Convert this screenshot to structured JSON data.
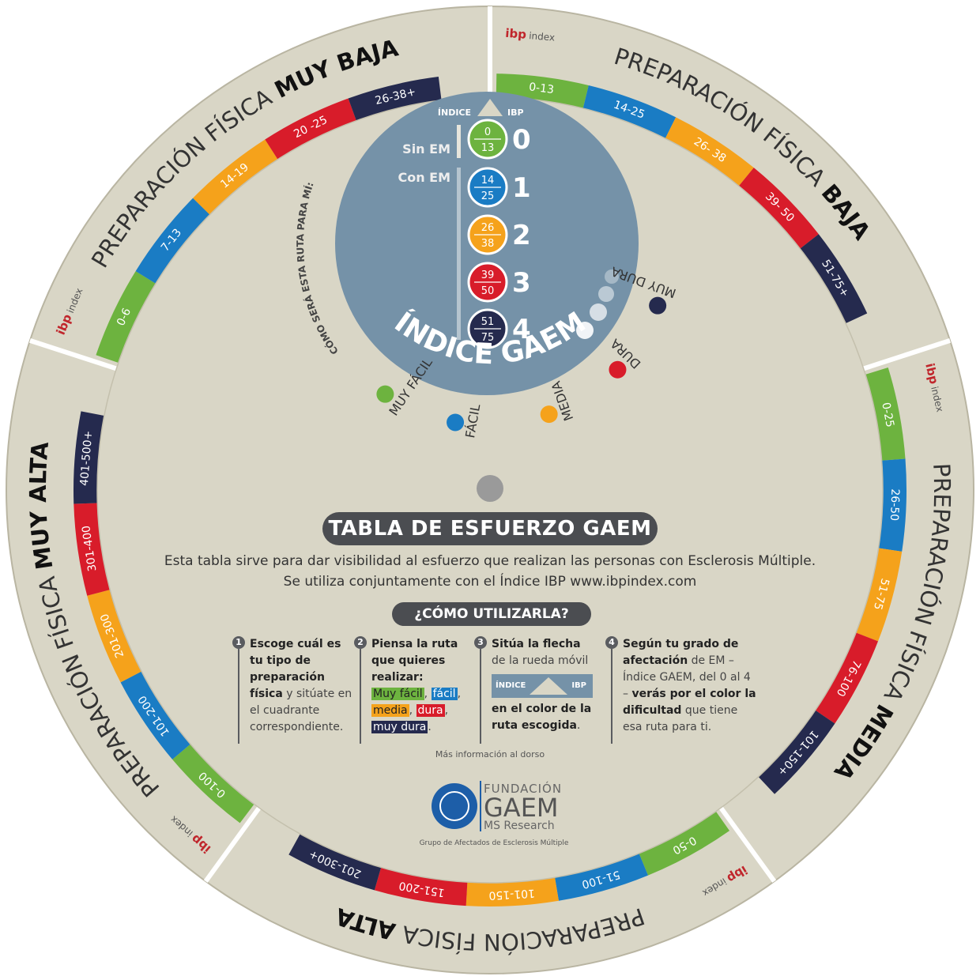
{
  "colors": {
    "beige": "#d9d6c6",
    "beige_dark": "#cfcbb8",
    "green": "#6db33f",
    "blue": "#1a7cc4",
    "orange": "#f5a21b",
    "red": "#d81c2a",
    "navy": "#252a4e",
    "slate": "#7592a8",
    "dark_gray": "#4b4d51"
  },
  "quadrants": [
    {
      "title_prefix": "PREPARACIÓN FÍSICA",
      "title_level": "BAJA",
      "ranges": [
        "0-13",
        "14-25",
        "26- 38",
        "39- 50",
        "51-75+"
      ]
    },
    {
      "title_prefix": "PREPARACIÓN FÍSICA",
      "title_level": "MEDIA",
      "ranges": [
        "0-25",
        "26-50",
        "51-75",
        "76-100",
        "101-150+"
      ]
    },
    {
      "title_prefix": "PREPARACIÓN FÍSICA",
      "title_level": "ALTA",
      "ranges": [
        "0-50",
        "51-100",
        "101-150",
        "151-200",
        "201-300+"
      ]
    },
    {
      "title_prefix": "PREPARACIÓN FÍSICA",
      "title_level": "MUY ALTA",
      "ranges": [
        "0-100",
        "101-200",
        "201-300",
        "301-400",
        "401-500+"
      ]
    },
    {
      "title_prefix": "PREPARACIÓN FÍSICA",
      "title_level": "MUY BAJA",
      "ranges": [
        "0-6",
        "7-13",
        "14-19",
        "20 -25",
        "26-38+"
      ]
    }
  ],
  "logo": {
    "name": "ibp index",
    "ibp": "ibp",
    "index": "index"
  },
  "gaem_disc": {
    "indice_label": "ÍNDICE",
    "ibp_label": "IBP",
    "sin_em": "Sin EM",
    "con_em": "Con EM",
    "levels": [
      {
        "num": "0",
        "low": "0",
        "high": "13"
      },
      {
        "num": "1",
        "low": "14",
        "high": "25"
      },
      {
        "num": "2",
        "low": "26",
        "high": "38"
      },
      {
        "num": "3",
        "low": "39",
        "high": "50"
      },
      {
        "num": "4",
        "low": "51",
        "high": "75"
      }
    ],
    "title": "ÍNDICE GAEM"
  },
  "route_question": "CÓMO SERÁ ESTA RUTA PARA MÍ:",
  "difficulties": [
    "MUY FÁCIL",
    "FÁCIL",
    "MEDIA",
    "DURA",
    "MUY DURA"
  ],
  "center": {
    "title": "TABLA DE ESFUERZO GAEM",
    "desc1": "Esta tabla sirve para dar visibilidad al esfuerzo que realizan las personas con Esclerosis Múltiple.",
    "desc2": "Se utiliza conjuntamente con el Índice IBP  www.ibpindex.com",
    "how_title": "¿CÓMO UTILIZARLA?"
  },
  "steps": [
    {
      "num": "1",
      "b1": "Escoge cuál es tu tipo de preparación física",
      "t1": " y sitúate en el cuadrante correspondiente."
    },
    {
      "num": "2",
      "b1": "Piensa la ruta que quieres realizar:",
      "opts": [
        "Muy fácil",
        "fácil",
        "media",
        "dura",
        "muy dura"
      ]
    },
    {
      "num": "3",
      "b1": "Sitúa la flecha",
      "t1": "de la rueda móvil",
      "b2": "en el color de la ruta escogida",
      "t2": ".",
      "ind": "ÍNDICE",
      "ibp": "IBP"
    },
    {
      "num": "4",
      "b1": "Según tu grado de afectación",
      "t1": " de EM – Índice GAEM, del 0 al 4 – ",
      "b2": "verás por el color la dificultad",
      "t2": " que tiene esa ruta para ti."
    }
  ],
  "more_info": "Más información al dorso",
  "foundation": {
    "line1": "FUNDACIÓN",
    "line2": "GAEM",
    "line3": "MS Research",
    "sub": "Grupo de Afectados de Esclerosis Múltiple"
  }
}
